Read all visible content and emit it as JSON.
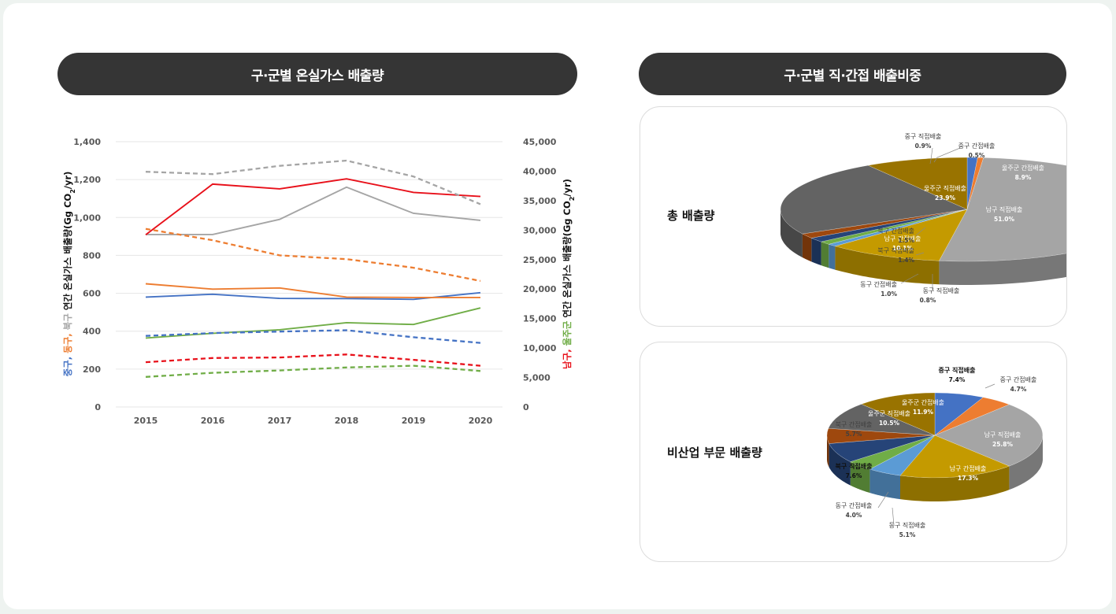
{
  "left_header": {
    "title": "구·군별 온실가스 배출량"
  },
  "right_header": {
    "title": "구·군별  직·간접 배출비중"
  },
  "panels": {
    "total_label": "총 배출량",
    "nonindustry_label": "비산업 부문 배출량"
  },
  "colors": {
    "blue": "#4472c4",
    "orange": "#ed7d31",
    "gray": "#a5a5a5",
    "gold": "#c49a00",
    "green": "#70ad47",
    "red": "#e8101a",
    "darkgray": "#636363",
    "brown": "#9e480e",
    "navy": "#264478",
    "lightblue": "#5b9bd5",
    "darkgold": "#997300"
  },
  "chart_data": [
    {
      "type": "line",
      "x": [
        2015,
        2016,
        2017,
        2018,
        2019,
        2020
      ],
      "ylim": [
        0,
        1400
      ],
      "y2lim": [
        0,
        45000
      ],
      "yticks": [
        "0",
        "200",
        "400",
        "600",
        "800",
        "1,000",
        "1,200",
        "1,400"
      ],
      "y2ticks": [
        "0",
        "5,000",
        "10,000",
        "15,000",
        "20,000",
        "25,000",
        "30,000",
        "35,000",
        "40,000",
        "45,000"
      ],
      "ylabel_parts": [
        {
          "text": "중구,",
          "color": "#4472c4"
        },
        {
          "text": " 동구,",
          "color": "#ed7d31"
        },
        {
          "text": " 북구",
          "color": "#a5a5a5"
        },
        {
          "text": " 연간 온실가스 배출량(Gg CO",
          "color": "#111111"
        },
        {
          "text": "2",
          "color": "#111111",
          "sub": true
        },
        {
          "text": "/yr)",
          "color": "#111111"
        }
      ],
      "y2label_parts": [
        {
          "text": "남구,",
          "color": "#e8101a"
        },
        {
          "text": " 울주군",
          "color": "#70ad47"
        },
        {
          "text": " 연간 온실가스 배출량(Gg CO",
          "color": "#111111"
        },
        {
          "text": "2",
          "color": "#111111",
          "sub": true
        },
        {
          "text": "/yr)",
          "color": "#111111"
        }
      ],
      "series": [
        {
          "color": "#4472c4",
          "axis": "y",
          "dash": false,
          "values": [
            580,
            595,
            573,
            572,
            568,
            603
          ]
        },
        {
          "color": "#ed7d31",
          "axis": "y",
          "dash": false,
          "values": [
            650,
            622,
            628,
            580,
            578,
            578
          ]
        },
        {
          "color": "#a5a5a5",
          "axis": "y",
          "dash": false,
          "values": [
            910,
            910,
            990,
            1160,
            1022,
            985
          ]
        },
        {
          "color": "#e8101a",
          "axis": "y2",
          "dash": false,
          "values": [
            29200,
            37800,
            37000,
            38700,
            36400,
            35700
          ]
        },
        {
          "color": "#70ad47",
          "axis": "y2",
          "dash": false,
          "values": [
            11700,
            12500,
            13100,
            14300,
            14000,
            16800
          ]
        },
        {
          "color": "#4472c4",
          "axis": "y",
          "dash": true,
          "values": [
            375,
            390,
            398,
            405,
            368,
            338
          ]
        },
        {
          "color": "#ed7d31",
          "axis": "y",
          "dash": true,
          "values": [
            940,
            880,
            800,
            780,
            735,
            665
          ]
        },
        {
          "color": "#a5a5a5",
          "axis": "y2",
          "dash": true,
          "values": [
            39900,
            39500,
            40900,
            41800,
            39100,
            34400
          ]
        },
        {
          "color": "#e8101a",
          "axis": "y2",
          "dash": true,
          "values": [
            7600,
            8300,
            8400,
            8900,
            8000,
            7000
          ]
        },
        {
          "color": "#70ad47",
          "axis": "y2",
          "dash": true,
          "values": [
            5100,
            5800,
            6200,
            6700,
            7000,
            6100
          ]
        }
      ]
    },
    {
      "type": "pie",
      "slices": [
        {
          "label": "중구 직접배출",
          "value": 0.9,
          "pct": "0.9%",
          "color": "#4472c4"
        },
        {
          "label": "중구 간접배출",
          "value": 0.5,
          "pct": "0.5%",
          "color": "#ed7d31"
        },
        {
          "label": "남구 직접배출",
          "value": 51.0,
          "pct": "51.0%",
          "color": "#a5a5a5"
        },
        {
          "label": "남구 간접배출",
          "value": 10.1,
          "pct": "10.1%",
          "color": "#c49a00"
        },
        {
          "label": "동구 직접배출",
          "value": 0.8,
          "pct": "0.8%",
          "color": "#5b9bd5"
        },
        {
          "label": "동구 간접배출",
          "value": 1.0,
          "pct": "1.0%",
          "color": "#70ad47"
        },
        {
          "label": "북구 직접배출",
          "value": 1.4,
          "pct": "1.4%",
          "color": "#264478"
        },
        {
          "label": "북구 간접배출",
          "value": 1.5,
          "pct": "1.5%",
          "color": "#9e480e"
        },
        {
          "label": "울주군 직접배출",
          "value": 23.9,
          "pct": "23.9%",
          "color": "#636363"
        },
        {
          "label": "울주군 간접배출",
          "value": 8.9,
          "pct": "8.9%",
          "color": "#997300"
        }
      ]
    },
    {
      "type": "pie",
      "slices": [
        {
          "label": "중구 직접배출",
          "value": 7.4,
          "pct": "7.4%",
          "color": "#4472c4"
        },
        {
          "label": "중구 간접배출",
          "value": 4.7,
          "pct": "4.7%",
          "color": "#ed7d31"
        },
        {
          "label": "남구 직접배출",
          "value": 25.8,
          "pct": "25.8%",
          "color": "#a5a5a5"
        },
        {
          "label": "남구 간접배출",
          "value": 17.3,
          "pct": "17.3%",
          "color": "#c49a00"
        },
        {
          "label": "동구 직접배출",
          "value": 5.1,
          "pct": "5.1%",
          "color": "#5b9bd5"
        },
        {
          "label": "동구 간접배출",
          "value": 4.0,
          "pct": "4.0%",
          "color": "#70ad47"
        },
        {
          "label": "북구 직접배출",
          "value": 7.6,
          "pct": "7.6%",
          "color": "#264478"
        },
        {
          "label": "북구 간접배출",
          "value": 5.7,
          "pct": "5.7%",
          "color": "#9e480e"
        },
        {
          "label": "울주군 직접배출",
          "value": 10.5,
          "pct": "10.5%",
          "color": "#636363"
        },
        {
          "label": "울주군 간접배출",
          "value": 11.9,
          "pct": "11.9%",
          "color": "#997300"
        }
      ]
    }
  ]
}
